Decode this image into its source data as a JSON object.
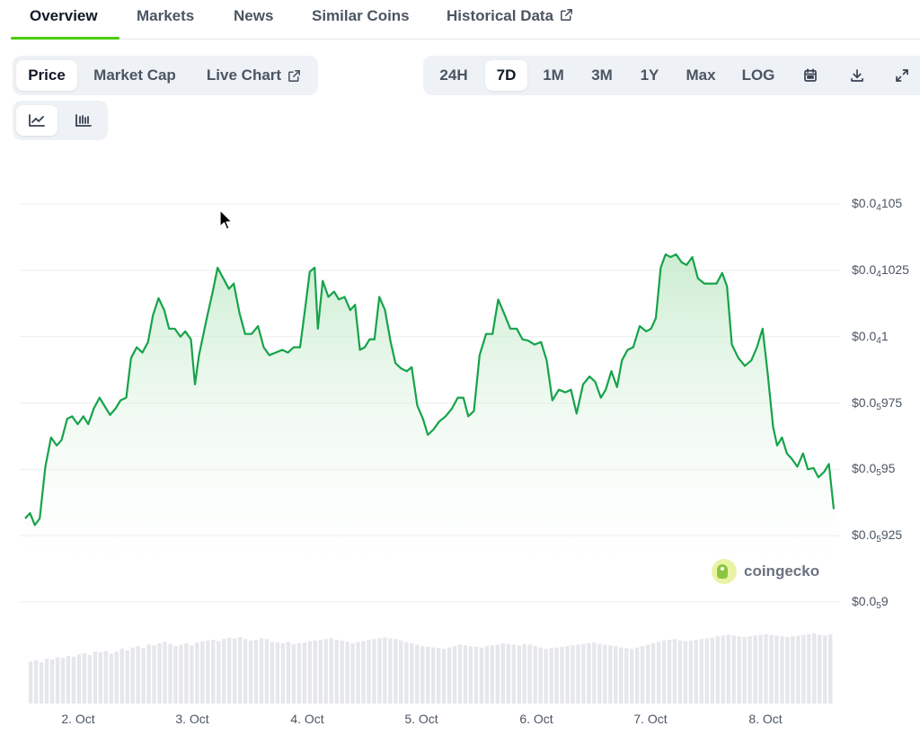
{
  "tabs": [
    {
      "label": "Overview",
      "active": true
    },
    {
      "label": "Markets"
    },
    {
      "label": "News"
    },
    {
      "label": "Similar Coins"
    },
    {
      "label": "Historical Data",
      "icon": "external-link-icon"
    }
  ],
  "view_toggle": {
    "price": "Price",
    "market_cap": "Market Cap",
    "live_chart": "Live Chart",
    "live_chart_icon": "external-link-icon",
    "active": "Price"
  },
  "chart_style": {
    "line_icon": "line-chart-icon",
    "candle_icon": "candlestick-chart-icon",
    "active": "line"
  },
  "ranges": {
    "options": [
      "24H",
      "7D",
      "1M",
      "3M",
      "1Y",
      "Max",
      "LOG"
    ],
    "active": "7D",
    "calendar_icon": "calendar-icon",
    "download_icon": "download-icon",
    "fullscreen_icon": "fullscreen-icon"
  },
  "watermark": "coingecko",
  "colors": {
    "line": "#16a34a",
    "fill_top": "#bbe7c3",
    "volume": "#e5e7eb",
    "accent": "#4bcc00"
  },
  "chart_data": {
    "type": "line",
    "x_range": [
      "1. Oct 14:00",
      "8. Oct 14:00"
    ],
    "xticks": [
      "2. Oct",
      "3. Oct",
      "4. Oct",
      "5. Oct",
      "6. Oct",
      "7. Oct",
      "8. Oct"
    ],
    "yticks": [
      {
        "prefix": "$0.0",
        "sub": "5",
        "rest": "9",
        "value": 9e-06
      },
      {
        "prefix": "$0.0",
        "sub": "5",
        "rest": "925",
        "value": 9.25e-06
      },
      {
        "prefix": "$0.0",
        "sub": "5",
        "rest": "95",
        "value": 9.5e-06
      },
      {
        "prefix": "$0.0",
        "sub": "5",
        "rest": "975",
        "value": 9.75e-06
      },
      {
        "prefix": "$0.0",
        "sub": "4",
        "rest": "1",
        "value": 1e-05
      },
      {
        "prefix": "$0.0",
        "sub": "4",
        "rest": "1025",
        "value": 1.025e-05
      },
      {
        "prefix": "$0.0",
        "sub": "4",
        "rest": "105",
        "value": 1.05e-05
      }
    ],
    "ylim": [
      9e-06,
      1.05e-05
    ],
    "grid": true,
    "price_points": [
      [
        0.0,
        9.315e-06
      ],
      [
        0.006,
        9.335e-06
      ],
      [
        0.012,
        9.29e-06
      ],
      [
        0.018,
        9.315e-06
      ],
      [
        0.025,
        9.51e-06
      ],
      [
        0.032,
        9.62e-06
      ],
      [
        0.039,
        9.59e-06
      ],
      [
        0.045,
        9.61e-06
      ],
      [
        0.052,
        9.69e-06
      ],
      [
        0.058,
        9.7e-06
      ],
      [
        0.065,
        9.67e-06
      ],
      [
        0.072,
        9.7e-06
      ],
      [
        0.078,
        9.67e-06
      ],
      [
        0.085,
        9.73e-06
      ],
      [
        0.092,
        9.77e-06
      ],
      [
        0.098,
        9.74e-06
      ],
      [
        0.105,
        9.705e-06
      ],
      [
        0.112,
        9.73e-06
      ],
      [
        0.118,
        9.76e-06
      ],
      [
        0.125,
        9.77e-06
      ],
      [
        0.131,
        9.92e-06
      ],
      [
        0.138,
        9.96e-06
      ],
      [
        0.145,
        9.94e-06
      ],
      [
        0.152,
        9.98e-06
      ],
      [
        0.158,
        1.008e-05
      ],
      [
        0.165,
        1.0145e-05
      ],
      [
        0.172,
        1.01e-05
      ],
      [
        0.178,
        1.003e-05
      ],
      [
        0.185,
        1.003e-05
      ],
      [
        0.192,
        1e-05
      ],
      [
        0.198,
        1.002e-05
      ],
      [
        0.205,
        9.99e-06
      ],
      [
        0.21,
        9.82e-06
      ],
      [
        0.215,
        9.93e-06
      ],
      [
        0.225,
        1.0075e-05
      ],
      [
        0.232,
        1.017e-05
      ],
      [
        0.238,
        1.026e-05
      ],
      [
        0.245,
        1.022e-05
      ],
      [
        0.252,
        1.018e-05
      ],
      [
        0.258,
        1.02e-05
      ],
      [
        0.265,
        1.009e-05
      ],
      [
        0.272,
        1.001e-05
      ],
      [
        0.28,
        1.001e-05
      ],
      [
        0.288,
        1.004e-05
      ],
      [
        0.295,
        9.96e-06
      ],
      [
        0.302,
        9.93e-06
      ],
      [
        0.31,
        9.94e-06
      ],
      [
        0.318,
        9.95e-06
      ],
      [
        0.325,
        9.94e-06
      ],
      [
        0.332,
        9.96e-06
      ],
      [
        0.34,
        9.96e-06
      ],
      [
        0.346,
        1.01e-05
      ],
      [
        0.352,
        1.0245e-05
      ],
      [
        0.358,
        1.026e-05
      ],
      [
        0.362,
        1.003e-05
      ],
      [
        0.368,
        1.021e-05
      ],
      [
        0.375,
        1.015e-05
      ],
      [
        0.382,
        1.017e-05
      ],
      [
        0.388,
        1.014e-05
      ],
      [
        0.395,
        1.015e-05
      ],
      [
        0.402,
        1.01e-05
      ],
      [
        0.408,
        1.012e-05
      ],
      [
        0.414,
        9.95e-06
      ],
      [
        0.42,
        9.96e-06
      ],
      [
        0.426,
        9.99e-06
      ],
      [
        0.432,
        9.99e-06
      ],
      [
        0.438,
        1.015e-05
      ],
      [
        0.445,
        1.01e-05
      ],
      [
        0.452,
        9.98e-06
      ],
      [
        0.458,
        9.9e-06
      ],
      [
        0.465,
        9.88e-06
      ],
      [
        0.472,
        9.87e-06
      ],
      [
        0.478,
        9.885e-06
      ],
      [
        0.485,
        9.74e-06
      ],
      [
        0.492,
        9.69e-06
      ],
      [
        0.498,
        9.63e-06
      ],
      [
        0.505,
        9.65e-06
      ],
      [
        0.512,
        9.68e-06
      ],
      [
        0.52,
        9.7e-06
      ],
      [
        0.528,
        9.73e-06
      ],
      [
        0.535,
        9.77e-06
      ],
      [
        0.542,
        9.77e-06
      ],
      [
        0.548,
        9.7e-06
      ],
      [
        0.555,
        9.72e-06
      ],
      [
        0.562,
        9.93e-06
      ],
      [
        0.57,
        1.001e-05
      ],
      [
        0.578,
        1.001e-05
      ],
      [
        0.585,
        1.014e-05
      ],
      [
        0.592,
        1.009e-05
      ],
      [
        0.6,
        1.003e-05
      ],
      [
        0.608,
        1.003e-05
      ],
      [
        0.615,
        9.99e-06
      ],
      [
        0.622,
        9.985e-06
      ],
      [
        0.63,
        9.97e-06
      ],
      [
        0.638,
        9.98e-06
      ],
      [
        0.645,
        9.91e-06
      ],
      [
        0.652,
        9.76e-06
      ],
      [
        0.66,
        9.8e-06
      ],
      [
        0.668,
        9.79e-06
      ],
      [
        0.675,
        9.8e-06
      ],
      [
        0.682,
        9.71e-06
      ],
      [
        0.69,
        9.82e-06
      ],
      [
        0.698,
        9.85e-06
      ],
      [
        0.705,
        9.83e-06
      ],
      [
        0.712,
        9.77e-06
      ],
      [
        0.718,
        9.8e-06
      ],
      [
        0.725,
        9.87e-06
      ],
      [
        0.732,
        9.81e-06
      ],
      [
        0.738,
        9.91e-06
      ],
      [
        0.745,
        9.95e-06
      ],
      [
        0.752,
        9.96e-06
      ],
      [
        0.76,
        1.004e-05
      ],
      [
        0.768,
        1.002e-05
      ],
      [
        0.774,
        1.003e-05
      ],
      [
        0.78,
        1.007e-05
      ],
      [
        0.786,
        1.026e-05
      ],
      [
        0.792,
        1.031e-05
      ],
      [
        0.798,
        1.03e-05
      ],
      [
        0.805,
        1.031e-05
      ],
      [
        0.812,
        1.028e-05
      ],
      [
        0.818,
        1.027e-05
      ],
      [
        0.825,
        1.03e-05
      ],
      [
        0.832,
        1.022e-05
      ],
      [
        0.84,
        1.02e-05
      ],
      [
        0.848,
        1.02e-05
      ],
      [
        0.855,
        1.02e-05
      ],
      [
        0.862,
        1.024e-05
      ],
      [
        0.868,
        1.019e-05
      ],
      [
        0.874,
        9.97e-06
      ],
      [
        0.882,
        9.92e-06
      ],
      [
        0.89,
        9.89e-06
      ],
      [
        0.898,
        9.91e-06
      ],
      [
        0.905,
        9.96e-06
      ],
      [
        0.912,
        1.003e-05
      ],
      [
        0.918,
        9.87e-06
      ],
      [
        0.925,
        9.66e-06
      ],
      [
        0.93,
        9.59e-06
      ],
      [
        0.936,
        9.62e-06
      ],
      [
        0.942,
        9.56e-06
      ],
      [
        0.948,
        9.54e-06
      ],
      [
        0.955,
        9.51e-06
      ],
      [
        0.962,
        9.56e-06
      ],
      [
        0.968,
        9.5e-06
      ],
      [
        0.975,
        9.505e-06
      ],
      [
        0.981,
        9.47e-06
      ],
      [
        0.988,
        9.49e-06
      ],
      [
        0.994,
        9.52e-06
      ],
      [
        1.0,
        9.35e-06
      ]
    ],
    "volume_bars": [
      60,
      62,
      59,
      64,
      63,
      66,
      65,
      68,
      67,
      70,
      72,
      69,
      74,
      73,
      75,
      71,
      74,
      78,
      76,
      80,
      82,
      79,
      84,
      83,
      86,
      88,
      85,
      82,
      84,
      86,
      83,
      87,
      89,
      90,
      91,
      89,
      92,
      94,
      93,
      95,
      92,
      90,
      91,
      93,
      92,
      88,
      87,
      86,
      88,
      85,
      86,
      87,
      89,
      90,
      91,
      92,
      93,
      91,
      90,
      88,
      86,
      88,
      89,
      91,
      92,
      93,
      94,
      93,
      92,
      90,
      88,
      86,
      84,
      82,
      81,
      80,
      79,
      78,
      80,
      82,
      84,
      83,
      82,
      81,
      80,
      82,
      83,
      84,
      86,
      85,
      84,
      83,
      85,
      84,
      82,
      80,
      78,
      79,
      80,
      81,
      82,
      83,
      84,
      85,
      86,
      87,
      85,
      84,
      83,
      82,
      80,
      79,
      78,
      80,
      82,
      84,
      86,
      88,
      90,
      91,
      92,
      90,
      89,
      90,
      91,
      92,
      93,
      94,
      96,
      97,
      98,
      97,
      96,
      95,
      96,
      97,
      98,
      99,
      98,
      97,
      96,
      95,
      96,
      97,
      98,
      99,
      100,
      98,
      97,
      99
    ]
  }
}
